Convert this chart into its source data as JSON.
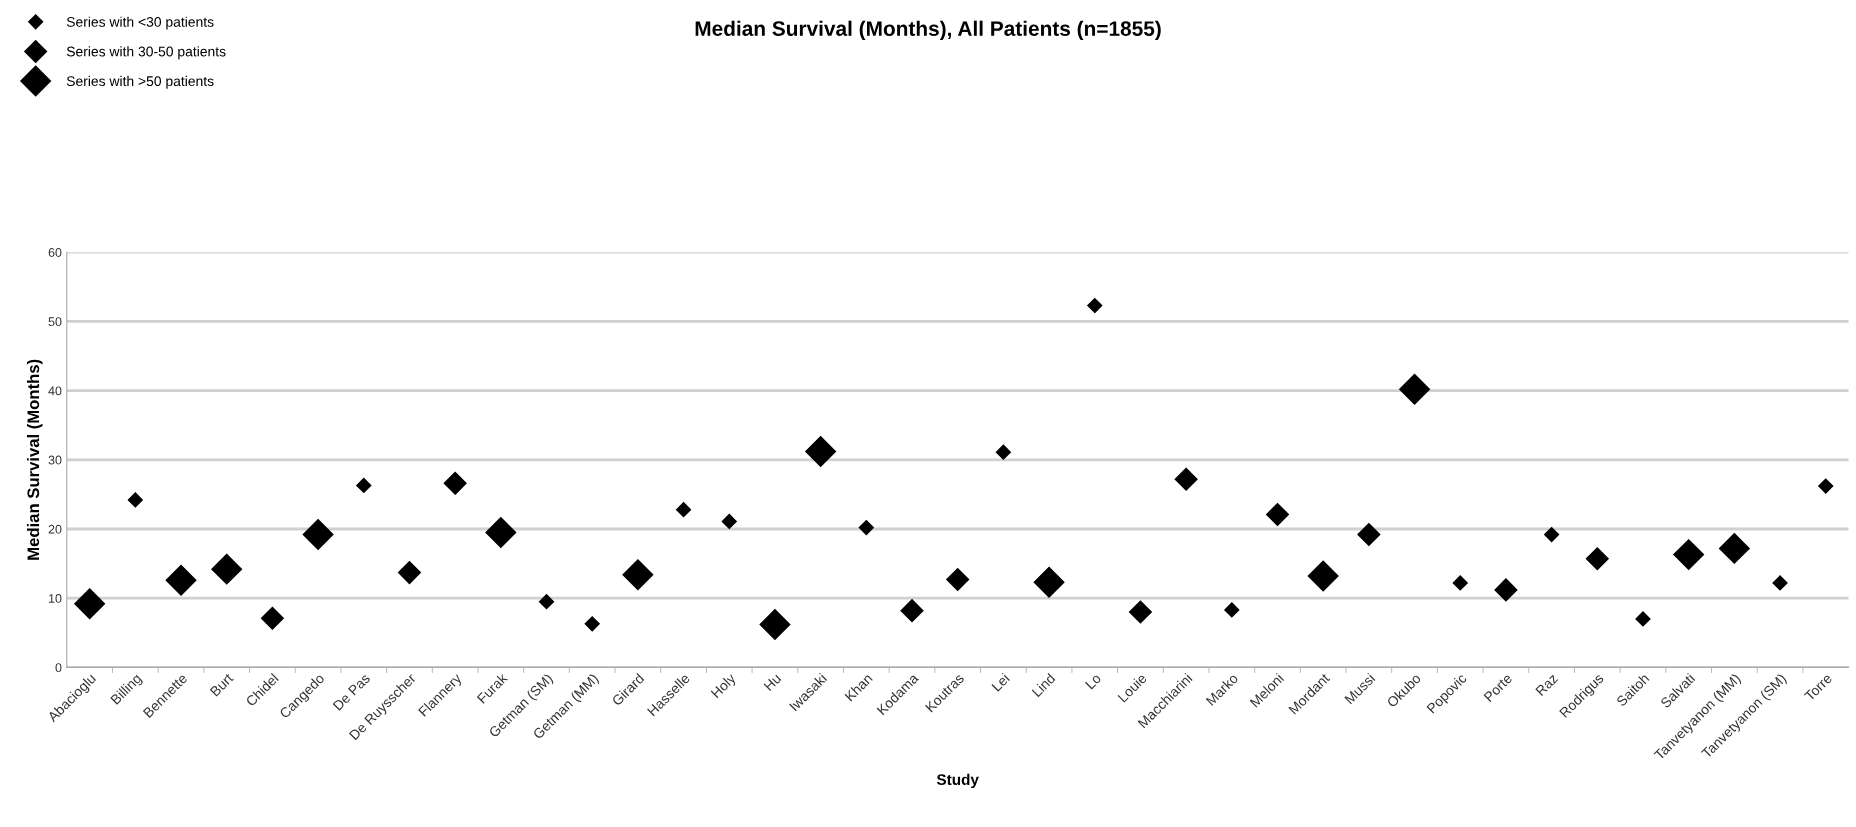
{
  "chart_data": {
    "type": "scatter",
    "title": "Median Survival (Months), All Patients (n=1855)",
    "xlabel": "Study",
    "ylabel": "Median Survival (Months)",
    "categories": [
      "Abacioglu",
      "Billing",
      "Bennette",
      "Burt",
      "Chidel",
      "Cangedo",
      "De Pas",
      "De Ruysscher",
      "Flannery",
      "Furak",
      "Getman (SM)",
      "Getman (MM)",
      "Girard",
      "Hasselle",
      "Holy",
      "Hu",
      "Iwasaki",
      "Khan",
      "Kodama",
      "Koutras",
      "Lei",
      "Lind",
      "Lo",
      "Louie",
      "Macchiarini",
      "Marko",
      "Meloni",
      "Mordant",
      "Mussi",
      "Okubo",
      "Popovic",
      "Porte",
      "Raz",
      "Rodrigus",
      "Saitoh",
      "Salvati",
      "Tanvetyanon (MM)",
      "Tanvetyanon (SM)",
      "Torre"
    ],
    "series": [
      {
        "name": "Series with <30 patients",
        "color": "#000000",
        "values": [
          null,
          24.2,
          null,
          null,
          null,
          null,
          26.3,
          null,
          null,
          null,
          9.5,
          6.3,
          null,
          22.8,
          21.1,
          null,
          null,
          20.2,
          null,
          null,
          31.1,
          null,
          52.3,
          null,
          null,
          8.3,
          null,
          null,
          null,
          null,
          12.2,
          null,
          19.2,
          null,
          7.0,
          null,
          null,
          12.2,
          26.2
        ]
      },
      {
        "name": "Series with 30-50 patients",
        "color": "#000000",
        "values": [
          null,
          null,
          null,
          null,
          7.1,
          null,
          null,
          13.7,
          26.6,
          null,
          null,
          null,
          null,
          null,
          null,
          null,
          null,
          null,
          8.2,
          12.7,
          null,
          null,
          null,
          8.0,
          27.2,
          null,
          22.1,
          null,
          19.2,
          null,
          null,
          11.2,
          null,
          15.7,
          null,
          null,
          null,
          null,
          null
        ]
      },
      {
        "name": "Series with >50 patients",
        "color": "#000000",
        "values": [
          9.2,
          null,
          12.6,
          14.2,
          null,
          19.2,
          null,
          null,
          null,
          19.5,
          null,
          null,
          13.4,
          null,
          null,
          6.2,
          31.2,
          null,
          null,
          null,
          null,
          12.3,
          null,
          null,
          null,
          null,
          null,
          13.2,
          null,
          40.2,
          null,
          null,
          null,
          null,
          null,
          16.3,
          17.2,
          null,
          null
        ]
      }
    ],
    "ylim": [
      0,
      60
    ],
    "yticks": [
      0,
      10,
      20,
      30,
      40,
      50,
      60
    ],
    "grid": "y",
    "legend": "top left",
    "marker": "diamond"
  }
}
